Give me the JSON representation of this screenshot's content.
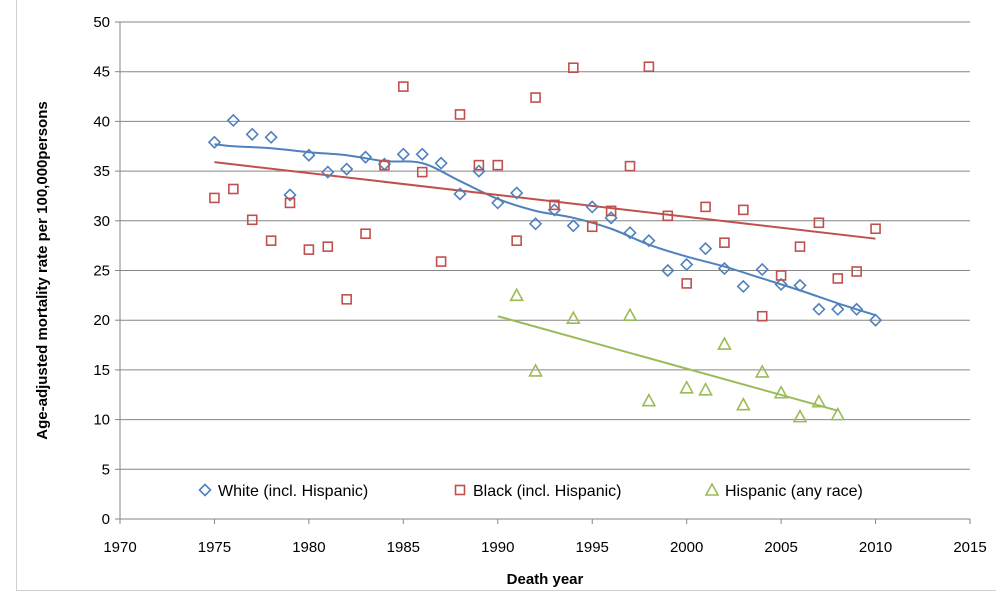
{
  "chart_data": {
    "type": "scatter",
    "title": "",
    "xlabel": "Death year",
    "ylabel": "Age-adjusted mortality rate per 100,000persons",
    "xlim": [
      1970,
      2015
    ],
    "ylim": [
      0,
      50
    ],
    "x_ticks": [
      1970,
      1975,
      1980,
      1985,
      1990,
      1995,
      2000,
      2005,
      2010,
      2015
    ],
    "y_ticks": [
      0,
      5,
      10,
      15,
      20,
      25,
      30,
      35,
      40,
      45,
      50
    ],
    "grid": "horizontal",
    "legend_position": "bottom-inside",
    "series": [
      {
        "name": "White (incl. Hispanic)",
        "marker": "diamond",
        "color": "#4F81BD",
        "x": [
          1975,
          1976,
          1977,
          1978,
          1979,
          1980,
          1981,
          1982,
          1983,
          1984,
          1985,
          1986,
          1987,
          1988,
          1989,
          1990,
          1991,
          1992,
          1993,
          1994,
          1995,
          1996,
          1997,
          1998,
          1999,
          2000,
          2001,
          2002,
          2003,
          2004,
          2005,
          2006,
          2007,
          2008,
          2009,
          2010
        ],
        "y": [
          37.9,
          40.1,
          38.7,
          38.4,
          32.6,
          36.6,
          34.9,
          35.2,
          36.4,
          35.7,
          36.7,
          36.7,
          35.8,
          32.7,
          35.0,
          31.8,
          32.8,
          29.7,
          31.1,
          29.5,
          31.4,
          30.3,
          28.8,
          28.0,
          25.0,
          25.6,
          27.2,
          25.2,
          23.4,
          25.1,
          23.6,
          23.5,
          21.1,
          21.1,
          21.1,
          20.0
        ],
        "trend": "smoothed",
        "trend_x": [
          1975,
          1976,
          1978,
          1980,
          1982,
          1984,
          1986,
          1988,
          1990,
          1992,
          1994,
          1996,
          1998,
          2000,
          2002,
          2004,
          2006,
          2008,
          2010
        ],
        "trend_y": [
          37.7,
          37.5,
          37.3,
          36.9,
          36.6,
          36.0,
          35.8,
          34.0,
          32.2,
          31.0,
          30.3,
          29.2,
          27.6,
          26.4,
          25.4,
          24.2,
          23.0,
          21.7,
          20.5
        ]
      },
      {
        "name": "Black (incl. Hispanic)",
        "marker": "square",
        "color": "#C0504D",
        "x": [
          1975,
          1976,
          1977,
          1978,
          1979,
          1980,
          1981,
          1982,
          1983,
          1984,
          1985,
          1986,
          1987,
          1988,
          1989,
          1990,
          1991,
          1992,
          1993,
          1994,
          1995,
          1996,
          1997,
          1998,
          1999,
          2000,
          2001,
          2002,
          2003,
          2004,
          2005,
          2006,
          2007,
          2008,
          2009,
          2010
        ],
        "y": [
          32.3,
          33.2,
          30.1,
          28.0,
          31.8,
          27.1,
          27.4,
          22.1,
          28.7,
          35.6,
          43.5,
          34.9,
          25.9,
          40.7,
          35.6,
          35.6,
          28.0,
          42.4,
          31.6,
          45.4,
          29.4,
          31.0,
          35.5,
          45.5,
          30.5,
          23.7,
          31.4,
          27.8,
          31.1,
          20.4,
          24.5,
          27.4,
          29.8,
          24.2,
          24.9,
          29.2
        ],
        "trend": "linear",
        "trend_x": [
          1975,
          2010
        ],
        "trend_y": [
          35.9,
          28.2
        ]
      },
      {
        "name": "Hispanic (any race)",
        "marker": "triangle",
        "color": "#9BBB59",
        "x": [
          1991,
          1992,
          1994,
          1997,
          1998,
          2000,
          2001,
          2002,
          2003,
          2004,
          2005,
          2006,
          2007,
          2008
        ],
        "y": [
          22.5,
          14.9,
          20.2,
          20.5,
          11.9,
          13.2,
          13.0,
          17.6,
          11.5,
          14.8,
          12.7,
          10.3,
          11.8,
          10.5
        ],
        "trend": "linear",
        "trend_x": [
          1990,
          2008
        ],
        "trend_y": [
          20.4,
          10.9
        ]
      }
    ]
  }
}
